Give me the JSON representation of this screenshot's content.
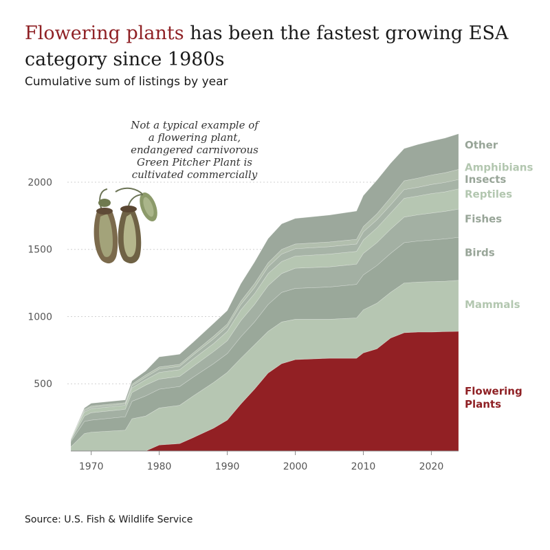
{
  "header": {
    "title_highlight": "Flowering plants",
    "title_rest": " has been the fastest growing ESA category since 1980s",
    "subtitle": "Cumulative sum of listings by year"
  },
  "annotation": {
    "lines": [
      "Not a typical example of",
      "a flowering plant,",
      "endangered carnivorous",
      "Green Pitcher Plant is",
      "cultivated commercially"
    ]
  },
  "footer": {
    "source": "Source: U.S. Fish & Wildlife Service"
  },
  "chart_data": {
    "type": "area",
    "stacked": true,
    "subtitle": "Cumulative sum of listings by year",
    "xlim": [
      1967,
      2024
    ],
    "ylim": [
      0,
      2450
    ],
    "x_ticks": [
      1970,
      1980,
      1990,
      2000,
      2010,
      2020
    ],
    "y_ticks": [
      500,
      1000,
      1500,
      2000
    ],
    "grid": "horizontal dotted",
    "legend": "direct labels at right",
    "x": [
      1967,
      1969,
      1970,
      1975,
      1976,
      1978,
      1980,
      1983,
      1985,
      1988,
      1990,
      1992,
      1994,
      1996,
      1998,
      2000,
      2005,
      2009,
      2010,
      2012,
      2014,
      2016,
      2018,
      2020,
      2022,
      2024
    ],
    "series": [
      {
        "name": "Flowering Plants",
        "color": "#922024",
        "values": [
          0,
          0,
          0,
          0,
          0,
          0,
          45,
          55,
          100,
          170,
          230,
          350,
          460,
          580,
          650,
          680,
          690,
          690,
          730,
          760,
          840,
          880,
          885,
          885,
          888,
          890
        ]
      },
      {
        "name": "Mammals",
        "color": "#b6c6b2",
        "values": [
          30,
          130,
          140,
          155,
          240,
          260,
          275,
          285,
          310,
          340,
          355,
          340,
          330,
          310,
          310,
          300,
          290,
          300,
          320,
          340,
          340,
          370,
          372,
          375,
          375,
          380
        ]
      },
      {
        "name": "Birds",
        "color": "#9aa89a",
        "values": [
          40,
          90,
          90,
          100,
          130,
          150,
          140,
          140,
          140,
          140,
          140,
          160,
          170,
          200,
          220,
          230,
          240,
          250,
          260,
          280,
          290,
          300,
          305,
          310,
          315,
          320
        ]
      },
      {
        "name": "Fishes",
        "color": "#a3b0a3",
        "values": [
          10,
          40,
          55,
          55,
          65,
          80,
          75,
          75,
          80,
          90,
          95,
          120,
          130,
          140,
          140,
          150,
          150,
          150,
          160,
          170,
          180,
          190,
          195,
          200,
          205,
          210
        ]
      },
      {
        "name": "Reptiles",
        "color": "#b6c6b2",
        "values": [
          5,
          30,
          30,
          30,
          35,
          40,
          50,
          50,
          55,
          60,
          70,
          80,
          80,
          90,
          90,
          90,
          95,
          95,
          100,
          110,
          120,
          140,
          140,
          145,
          145,
          150
        ]
      },
      {
        "name": "Insects",
        "color": "#a7b4a7",
        "values": [
          2,
          10,
          10,
          10,
          15,
          20,
          25,
          25,
          30,
          35,
          35,
          40,
          45,
          50,
          55,
          55,
          55,
          55,
          60,
          60,
          60,
          65,
          65,
          68,
          70,
          70
        ]
      },
      {
        "name": "Amphibians",
        "color": "#b2bfae",
        "values": [
          2,
          10,
          10,
          10,
          12,
          15,
          15,
          15,
          15,
          20,
          20,
          25,
          30,
          30,
          35,
          35,
          35,
          35,
          40,
          45,
          55,
          65,
          68,
          70,
          72,
          75
        ]
      },
      {
        "name": "Other",
        "color": "#9ca89c",
        "values": [
          1,
          10,
          20,
          20,
          25,
          30,
          75,
          75,
          80,
          95,
          100,
          130,
          160,
          180,
          190,
          190,
          200,
          210,
          230,
          250,
          255,
          240,
          250,
          252,
          258,
          265
        ]
      }
    ],
    "series_label_colors": {
      "Flowering Plants": "#8f2125",
      "Mammals": "#b3c7b0",
      "Birds": "#98a598",
      "Fishes": "#98a598",
      "Reptiles": "#b3c7b0",
      "Insects": "#98a598",
      "Amphibians": "#b3c7b0",
      "Other": "#98a598"
    },
    "series_labels": [
      {
        "series": "Flowering Plants",
        "lines": [
          "Flowering",
          "Plants"
        ],
        "at": 420
      },
      {
        "series": "Mammals",
        "lines": [
          "Mammals"
        ],
        "at": 1065
      },
      {
        "series": "Birds",
        "lines": [
          "Birds"
        ],
        "at": 1450
      },
      {
        "series": "Fishes",
        "lines": [
          "Fishes"
        ],
        "at": 1700
      },
      {
        "series": "Reptiles",
        "lines": [
          "Reptiles"
        ],
        "at": 1885
      },
      {
        "series": "Insects",
        "lines": [
          "Insects"
        ],
        "at": 1995
      },
      {
        "series": "Amphibians",
        "lines": [
          "Amphibians"
        ],
        "at": 2085
      },
      {
        "series": "Other",
        "lines": [
          "Other"
        ],
        "at": 2250
      }
    ]
  }
}
